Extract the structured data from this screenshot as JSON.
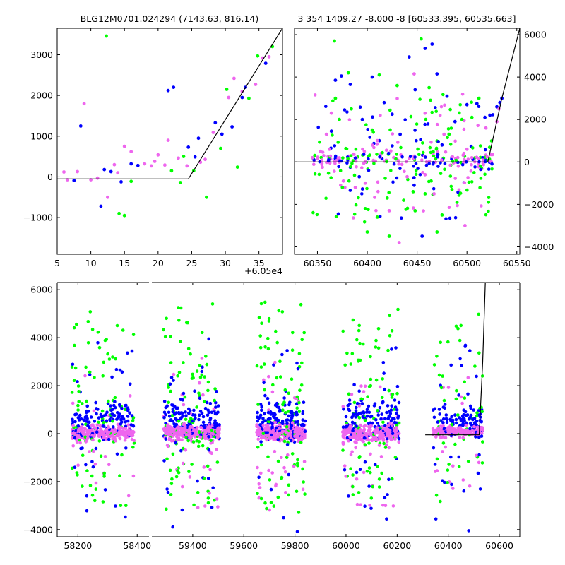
{
  "chart_data": [
    {
      "id": "top_left",
      "type": "scatter",
      "title": "BLG12M0701.024294 (7143.63, 816.14)",
      "xlabel": "",
      "ylabel": "",
      "x_offset_label": "+6.05e4",
      "xlim": [
        5,
        38.5
      ],
      "ylim": [
        -1900,
        3650
      ],
      "xticks": [
        5,
        10,
        15,
        20,
        25,
        30,
        35
      ],
      "yticks": [
        -1000,
        0,
        1000,
        2000,
        3000
      ],
      "ytick_side": "left",
      "grid": false,
      "model_line": {
        "x": [
          5,
          24.5,
          38.5
        ],
        "y": [
          -50,
          -50,
          3650
        ]
      },
      "series": [
        {
          "color": "#0000ff",
          "points": [
            [
              7.5,
              -90
            ],
            [
              8.5,
              1250
            ],
            [
              11.5,
              -720
            ],
            [
              12,
              180
            ],
            [
              13,
              130
            ],
            [
              14.5,
              -120
            ],
            [
              16,
              320
            ],
            [
              17,
              280
            ],
            [
              21.5,
              2120
            ],
            [
              22.3,
              2200
            ],
            [
              24.5,
              730
            ],
            [
              26,
              950
            ],
            [
              28.5,
              1330
            ],
            [
              29.5,
              1050
            ],
            [
              31,
              1230
            ],
            [
              33,
              2200
            ],
            [
              36,
              2790
            ],
            [
              25.5,
              490
            ],
            [
              32.5,
              1950
            ]
          ]
        },
        {
          "color": "#00ff00",
          "points": [
            [
              12.3,
              3460
            ],
            [
              14.2,
              -900
            ],
            [
              15,
              -950
            ],
            [
              16,
              -110
            ],
            [
              22,
              150
            ],
            [
              23.3,
              -140
            ],
            [
              25.3,
              150
            ],
            [
              27.2,
              -500
            ],
            [
              29.3,
              700
            ],
            [
              30.2,
              2150
            ],
            [
              31.8,
              240
            ],
            [
              33.5,
              1930
            ],
            [
              34.8,
              2970
            ],
            [
              37,
              3200
            ],
            [
              23.8,
              500
            ]
          ]
        },
        {
          "color": "#ee66ee",
          "points": [
            [
              6,
              120
            ],
            [
              6.5,
              -70
            ],
            [
              9,
              1800
            ],
            [
              8,
              130
            ],
            [
              10,
              -70
            ],
            [
              12.5,
              -500
            ],
            [
              13.5,
              300
            ],
            [
              15,
              750
            ],
            [
              16,
              620
            ],
            [
              18,
              320
            ],
            [
              19,
              270
            ],
            [
              20,
              540
            ],
            [
              21,
              290
            ],
            [
              21.5,
              900
            ],
            [
              23,
              460
            ],
            [
              24.3,
              270
            ],
            [
              26.3,
              360
            ],
            [
              27,
              430
            ],
            [
              28.2,
              1090
            ],
            [
              30.5,
              1950
            ],
            [
              31.3,
              2420
            ],
            [
              32.5,
              2100
            ],
            [
              34.5,
              2270
            ],
            [
              35.5,
              2920
            ],
            [
              36.5,
              2950
            ],
            [
              19.5,
              380
            ],
            [
              14,
              100
            ],
            [
              11,
              -30
            ]
          ]
        }
      ]
    },
    {
      "id": "top_right",
      "type": "scatter",
      "title": "3 354 1409.27 -8.000 -8 [60533.395, 60535.663]",
      "xlabel": "",
      "ylabel": "",
      "xlim": [
        60327,
        60553
      ],
      "ylim": [
        -4350,
        6300
      ],
      "xticks": [
        60350,
        60400,
        60450,
        60500,
        60550
      ],
      "yticks": [
        -4000,
        -2000,
        0,
        2000,
        4000,
        6000
      ],
      "ytick_side": "right",
      "grid": false,
      "model_line": {
        "x": [
          60327,
          60521,
          60535,
          60553
        ],
        "y": [
          0,
          0,
          3000,
          6300
        ]
      },
      "series": [
        {
          "color": "#0000ff",
          "points": [
            [
              60368,
              3850
            ],
            [
              60374,
              4050
            ],
            [
              60383,
              3650
            ],
            [
              60364,
              1450
            ],
            [
              60371,
              -2450
            ],
            [
              60395,
              2000
            ],
            [
              60405,
              4000
            ],
            [
              60412,
              1000
            ],
            [
              60425,
              2250
            ],
            [
              60433,
              1300
            ],
            [
              60442,
              4950
            ],
            [
              60448,
              3400
            ],
            [
              60455,
              -3500
            ],
            [
              60458,
              5350
            ],
            [
              60465,
              5550
            ],
            [
              60470,
              4150
            ],
            [
              60480,
              3100
            ],
            [
              60488,
              1900
            ],
            [
              60500,
              2700
            ],
            [
              60510,
              2750
            ],
            [
              60518,
              2100
            ],
            [
              60523,
              2200
            ],
            [
              60530,
              2600
            ],
            [
              60533,
              2800
            ],
            [
              60535,
              3000
            ],
            [
              60392,
              -700
            ],
            [
              60447,
              -1100
            ],
            [
              60475,
              800
            ]
          ]
        },
        {
          "color": "#00ff00",
          "points": [
            [
              60367,
              5700
            ],
            [
              60368,
              3000
            ],
            [
              60372,
              2000
            ],
            [
              60381,
              4200
            ],
            [
              60384,
              2500
            ],
            [
              60412,
              4100
            ],
            [
              60430,
              3600
            ],
            [
              60446,
              -1400
            ],
            [
              60454,
              5800
            ],
            [
              60462,
              3500
            ],
            [
              60470,
              -3300
            ],
            [
              60475,
              -2500
            ],
            [
              60485,
              -1300
            ],
            [
              60495,
              2000
            ],
            [
              60505,
              2100
            ],
            [
              60512,
              3000
            ],
            [
              60375,
              -1200
            ],
            [
              60400,
              -3300
            ],
            [
              60410,
              -2600
            ],
            [
              60420,
              -1700
            ],
            [
              60448,
              -2300
            ],
            [
              60458,
              -1500
            ],
            [
              60482,
              1300
            ],
            [
              60490,
              -1900
            ],
            [
              60405,
              1500
            ],
            [
              60398,
              -2200
            ],
            [
              60422,
              -3500
            ]
          ]
        },
        {
          "color": "#ee66ee",
          "points": [
            [
              60353,
              500
            ],
            [
              60359,
              1300
            ],
            [
              60364,
              2300
            ],
            [
              60388,
              -1200
            ],
            [
              60398,
              -1000
            ],
            [
              60432,
              -3800
            ],
            [
              60447,
              4150
            ],
            [
              60458,
              -600
            ],
            [
              60467,
              -1500
            ],
            [
              60498,
              -3000
            ],
            [
              60519,
              1600
            ],
            [
              60530,
              1900
            ],
            [
              60532,
              2500
            ],
            [
              60345,
              200
            ],
            [
              60355,
              -250
            ],
            [
              60362,
              600
            ],
            [
              60376,
              -900
            ],
            [
              60410,
              1000
            ],
            [
              60422,
              -2300
            ],
            [
              60440,
              -700
            ],
            [
              60477,
              1300
            ],
            [
              60500,
              600
            ]
          ]
        }
      ],
      "band": {
        "xlim": [
          60345,
          60526
        ],
        "ylim": [
          -500,
          700
        ],
        "density": 190
      }
    },
    {
      "id": "bottom",
      "type": "scatter",
      "title": "",
      "xlabel": "",
      "ylabel": "",
      "ylim": [
        -4300,
        6300
      ],
      "yticks": [
        -4000,
        -2000,
        0,
        2000,
        4000,
        6000
      ],
      "ytick_side": "left",
      "grid": false,
      "segments": [
        {
          "xlim": [
            58130,
            58440
          ],
          "xticks": [
            58200,
            58400
          ]
        },
        {
          "xlim": [
            59240,
            60680
          ],
          "xticks": [
            59400,
            59600,
            59800,
            60000,
            60200,
            60400,
            60600
          ]
        }
      ],
      "model_line": {
        "x": [
          60310,
          60521,
          60535,
          60545
        ],
        "y": [
          -50,
          -50,
          3000,
          6300
        ]
      },
      "clusters": [
        {
          "xlim": [
            58180,
            58390
          ],
          "core": [
            -900,
            1000
          ],
          "spread": 3000,
          "count": 480
        },
        {
          "xlim": [
            59285,
            59505
          ],
          "core": [
            -900,
            1100
          ],
          "spread": 3200,
          "count": 560
        },
        {
          "xlim": [
            59650,
            59840
          ],
          "core": [
            -1000,
            1100
          ],
          "spread": 3300,
          "count": 520
        },
        {
          "xlim": [
            59985,
            60210
          ],
          "core": [
            -1000,
            1100
          ],
          "spread": 3100,
          "count": 520
        },
        {
          "xlim": [
            60340,
            60535
          ],
          "core": [
            -600,
            900
          ],
          "spread": 3200,
          "count": 330
        }
      ],
      "colors": {
        "blue": "#0000ff",
        "green": "#00ff00",
        "pink": "#ee66ee"
      }
    }
  ]
}
